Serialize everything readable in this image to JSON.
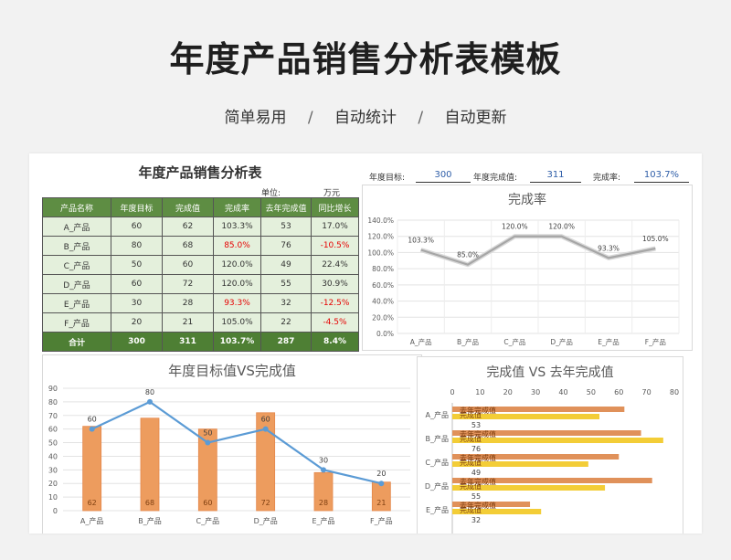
{
  "page": {
    "title": "年度产品销售分析表模板",
    "subtitle_items": [
      "简单易用",
      "自动统计",
      "自动更新"
    ],
    "subtitle_sep": "/"
  },
  "table": {
    "title": "年度产品销售分析表",
    "unit_label": "单位:",
    "unit_value": "万元",
    "headers": [
      "产品名称",
      "年度目标",
      "完成值",
      "完成率",
      "去年完成值",
      "同比增长"
    ],
    "rows": [
      [
        "A_产品",
        "60",
        "62",
        "103.3%",
        "53",
        "17.0%"
      ],
      [
        "B_产品",
        "80",
        "68",
        "85.0%",
        "76",
        "-10.5%"
      ],
      [
        "C_产品",
        "50",
        "60",
        "120.0%",
        "49",
        "22.4%"
      ],
      [
        "D_产品",
        "60",
        "72",
        "120.0%",
        "55",
        "30.9%"
      ],
      [
        "E_产品",
        "30",
        "28",
        "93.3%",
        "32",
        "-12.5%"
      ],
      [
        "F_产品",
        "20",
        "21",
        "105.0%",
        "22",
        "-4.5%"
      ]
    ],
    "total": [
      "合计",
      "300",
      "311",
      "103.7%",
      "287",
      "8.4%"
    ],
    "highlight_color": "#e60000"
  },
  "kpis": {
    "target_label": "年度目标:",
    "target_value": "300",
    "done_label": "年度完成值:",
    "done_value": "311",
    "rate_label": "完成率:",
    "rate_value": "103.7%"
  },
  "chart_data": [
    {
      "type": "line",
      "title": "完成率",
      "categories": [
        "A_产品",
        "B_产品",
        "C_产品",
        "D_产品",
        "E_产品",
        "F_产品"
      ],
      "series": [
        {
          "values": [
            103.3,
            85.0,
            120.0,
            120.0,
            93.3,
            105.0
          ]
        }
      ],
      "data_labels": [
        "103.3%",
        "85.0%",
        "120.0%",
        "120.0%",
        "93.3%",
        "105.0%"
      ],
      "y_ticks": [
        "0.0%",
        "20.0%",
        "40.0%",
        "60.0%",
        "80.0%",
        "100.0%",
        "120.0%",
        "140.0%"
      ],
      "ylim": [
        0,
        140
      ],
      "grid": true,
      "colors": {
        "line": "#a6a6a6"
      }
    },
    {
      "type": "bar",
      "title": "年度目标值VS完成值",
      "categories": [
        "A_产品",
        "B_产品",
        "C_产品",
        "D_产品",
        "E_产品",
        "F_产品"
      ],
      "series": [
        {
          "kind": "bar",
          "values": [
            62,
            68,
            60,
            72,
            28,
            21
          ]
        },
        {
          "kind": "line",
          "values": [
            60,
            80,
            50,
            60,
            30,
            20
          ]
        }
      ],
      "y_ticks": [
        "0",
        "10",
        "20",
        "30",
        "40",
        "50",
        "60",
        "70",
        "80",
        "90"
      ],
      "ylim": [
        0,
        90
      ],
      "grid": true,
      "colors": {
        "bar": "#ed9c5e",
        "line": "#5b9bd5"
      }
    },
    {
      "type": "bar",
      "orientation": "horizontal",
      "title": "完成值 VS 去年完成值",
      "categories": [
        "A_产品",
        "B_产品",
        "C_产品",
        "D_产品",
        "E_产品"
      ],
      "series": [
        {
          "values": [
            62,
            68,
            60,
            72,
            28
          ]
        },
        {
          "values": [
            53,
            76,
            49,
            55,
            32
          ]
        }
      ],
      "x_ticks": [
        "0",
        "10",
        "20",
        "30",
        "40",
        "50",
        "60",
        "70",
        "80"
      ],
      "xlim": [
        0,
        80
      ],
      "overlap_label_a": "去年完成值",
      "overlap_label_b": "完成值",
      "colors": {
        "series1": "#e0915a",
        "series2": "#f3cd37"
      }
    }
  ]
}
